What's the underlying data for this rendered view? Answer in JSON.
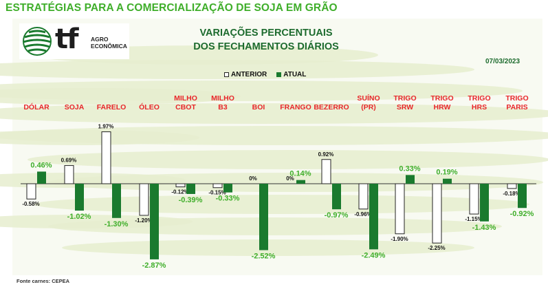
{
  "header": {
    "title": "ESTRATÉGIAS PARA A COMERCIALIZAÇÃO DE SOJA EM GRÃO"
  },
  "logo": {
    "mark": "tf",
    "sub": "AGRO\nECONÔMICA",
    "icon": "globe-icon"
  },
  "chart_title": "VARIAÇÕES PERCENTUAIS\nDOS FECHAMENTOS DIÁRIOS",
  "date": "07/03/2023",
  "legend": {
    "previous": "ANTERIOR",
    "current": "ATUAL"
  },
  "source": "Fonte carnes: CEPEA",
  "colors": {
    "title_green": "#3fae2a",
    "bar_current": "#1a7a2e",
    "label_red": "#e8262a",
    "label_green": "#3fae2a"
  },
  "chart_data": {
    "type": "bar",
    "title": "VARIAÇÕES PERCENTUAIS DOS FECHAMENTOS DIÁRIOS",
    "categories": [
      "DÓLAR",
      "SOJA",
      "FARELO",
      "ÓLEO",
      "MILHO\nCBOT",
      "MILHO\nB3",
      "BOI",
      "FRANGO",
      "BEZERRO",
      "SUÍNO\n(PR)",
      "TRIGO\nSRW",
      "TRIGO\nHRW",
      "TRIGO\nHRS",
      "TRIGO\nPARIS"
    ],
    "series": [
      {
        "name": "ANTERIOR",
        "values": [
          -0.58,
          0.69,
          1.97,
          -1.2,
          -0.12,
          -0.15,
          null,
          null,
          0.92,
          -0.96,
          -1.9,
          -2.25,
          -1.15,
          -0.18
        ],
        "labels": [
          "-0.58%",
          "0.69%",
          "1.97%",
          "-1.20%",
          "-0.12%",
          "-0.15%",
          "0%",
          "0%",
          "0.92%",
          "-0.96%",
          "-1.90%",
          "-2.25%",
          "-1.15%",
          "-0.18%"
        ]
      },
      {
        "name": "ATUAL",
        "values": [
          0.46,
          -1.02,
          -1.3,
          -2.87,
          -0.39,
          -0.33,
          -2.52,
          0.14,
          -0.97,
          -2.49,
          0.33,
          0.19,
          -1.43,
          -0.92
        ],
        "labels": [
          "0.46%",
          "-1.02%",
          "-1.30%",
          "-2.87%",
          "-0.39%",
          "-0.33%",
          "-2.52%",
          "0.14%",
          "-0.97%",
          "-2.49%",
          "0.33%",
          "0.19%",
          "-1.43%",
          "-0.92%"
        ]
      }
    ],
    "legend": "top-center",
    "grid": false
  }
}
